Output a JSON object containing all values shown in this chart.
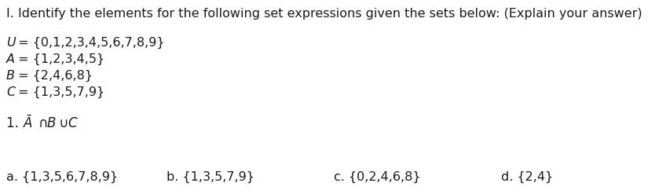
{
  "bg_color": "#ffffff",
  "title_line": "I. Identify the elements for the following set expressions given the sets below: (Explain your answer)",
  "set_letters": [
    "U",
    "A",
    "B",
    "C"
  ],
  "set_rests": [
    " = {0,1,2,3,4,5,6,7,8,9}",
    " = {1,2,3,4,5}",
    " = {2,4,6,8}",
    " = {1,3,5,7,9}"
  ],
  "question_number": "1. ",
  "answers": [
    {
      "label": "a.",
      "text": "{1,3,5,6,7,8,9}"
    },
    {
      "label": "b.",
      "text": "{1,3,5,7,9}"
    },
    {
      "label": "c.",
      "text": "{0,2,4,6,8}"
    },
    {
      "label": "d.",
      "text": "{2,4}"
    }
  ],
  "title_fontsize": 11.5,
  "sets_fontsize": 11.5,
  "question_fontsize": 12,
  "answer_fontsize": 11.5,
  "text_color": "#1a1a1a"
}
